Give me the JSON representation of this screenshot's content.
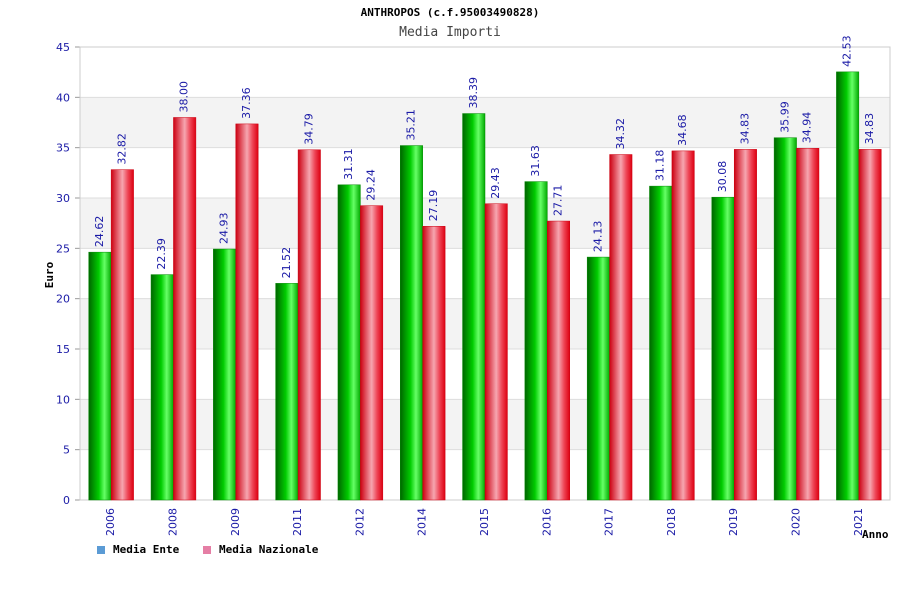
{
  "chart_data": {
    "type": "bar",
    "title": "ANTHROPOS (c.f.95003490828)",
    "subtitle": "Media Importi",
    "xlabel": "Anno",
    "ylabel": "Euro",
    "ylim": [
      0,
      45
    ],
    "yticks": [
      "0",
      "5",
      "10",
      "15",
      "20",
      "25",
      "30",
      "35",
      "40",
      "45"
    ],
    "categories": [
      "2006",
      "2008",
      "2009",
      "2011",
      "2012",
      "2014",
      "2015",
      "2016",
      "2017",
      "2018",
      "2019",
      "2020",
      "2021"
    ],
    "series": [
      {
        "name": "Media Ente",
        "color": "#00cc00",
        "values": [
          24.62,
          22.39,
          24.93,
          21.52,
          31.31,
          35.21,
          38.39,
          31.63,
          24.13,
          31.18,
          30.08,
          35.99,
          42.53
        ],
        "labels": [
          "24.62",
          "22.39",
          "24.93",
          "21.52",
          "31.31",
          "35.21",
          "38.39",
          "31.63",
          "24.13",
          "31.18",
          "30.08",
          "35.99",
          "42.53"
        ]
      },
      {
        "name": "Media Nazionale",
        "color": "#ee1133",
        "values": [
          32.82,
          38.0,
          37.36,
          34.79,
          29.24,
          27.19,
          29.43,
          27.71,
          34.32,
          34.68,
          34.83,
          34.94,
          34.83
        ],
        "labels": [
          "32.82",
          "38.00",
          "37.36",
          "34.79",
          "29.24",
          "27.19",
          "29.43",
          "27.71",
          "34.32",
          "34.68",
          "34.83",
          "34.94",
          "34.83"
        ]
      }
    ],
    "grid": true,
    "legend_position": "bottom-left"
  },
  "legend": [
    {
      "label": "Media Ente",
      "color": "#5b9bd5"
    },
    {
      "label": "Media Nazionale",
      "color": "#e57ea5"
    }
  ]
}
